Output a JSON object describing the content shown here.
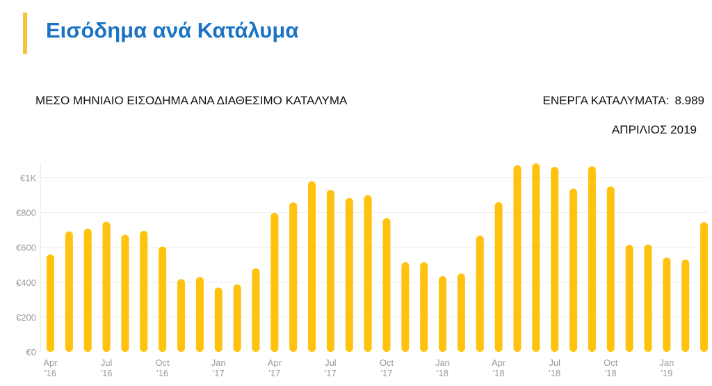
{
  "header": {
    "title": "Εισόδημα ανά Κατάλυμα"
  },
  "kpi": {
    "active_label": "ΕΝΕΡΓΑ ΚΑΤΑΛΥΜΑΤΑ:",
    "active_value": "8.989",
    "period": "ΑΠΡΙΛΙΟΣ 2019"
  },
  "colors": {
    "bar": "#FFC20E",
    "title": "#1A73C3",
    "accent": "#F5C33B",
    "axis_text": "#9A9A9A",
    "grid": "#EFEFEF"
  },
  "chart_data": {
    "type": "bar",
    "title": "ΜΕΣΟ ΜΗΝΙΑΙΟ ΕΙΣΟΔΗΜΑ ΑΝΑ ΔΙΑΘΕΣΙΜΟ ΚΑΤΑΛΥΜΑ",
    "xlabel": "",
    "ylabel": "",
    "categories": [
      "Apr 2016",
      "May 2016",
      "Jun 2016",
      "Jul 2016",
      "Aug 2016",
      "Sep 2016",
      "Oct 2016",
      "Nov 2016",
      "Dec 2016",
      "Jan 2017",
      "Feb 2017",
      "Mar 2017",
      "Apr 2017",
      "May 2017",
      "Jun 2017",
      "Jul 2017",
      "Aug 2017",
      "Sep 2017",
      "Oct 2017",
      "Nov 2017",
      "Dec 2017",
      "Jan 2018",
      "Feb 2018",
      "Mar 2018",
      "Apr 2018",
      "May 2018",
      "Jun 2018",
      "Jul 2018",
      "Aug 2018",
      "Sep 2018",
      "Oct 2018",
      "Nov 2018",
      "Dec 2018",
      "Jan 2019",
      "Feb 2019",
      "Mar 2019"
    ],
    "values": [
      560,
      692,
      708,
      748,
      672,
      695,
      605,
      418,
      430,
      370,
      388,
      480,
      798,
      858,
      980,
      930,
      883,
      900,
      768,
      515,
      515,
      435,
      450,
      668,
      860,
      1072,
      1082,
      1062,
      937,
      1065,
      950,
      615,
      617,
      542,
      530,
      745
    ],
    "ylim": [
      0,
      1100
    ],
    "yticks": [
      {
        "value": 0,
        "label": "€0"
      },
      {
        "value": 200,
        "label": "€200"
      },
      {
        "value": 400,
        "label": "€400"
      },
      {
        "value": 600,
        "label": "€600"
      },
      {
        "value": 800,
        "label": "€800"
      },
      {
        "value": 1000,
        "label": "€1K"
      }
    ],
    "xticks": [
      {
        "index": 0,
        "month": "Apr",
        "year": "'16"
      },
      {
        "index": 3,
        "month": "Jul",
        "year": "'16"
      },
      {
        "index": 6,
        "month": "Oct",
        "year": "'16"
      },
      {
        "index": 9,
        "month": "Jan",
        "year": "'17"
      },
      {
        "index": 12,
        "month": "Apr",
        "year": "'17"
      },
      {
        "index": 15,
        "month": "Jul",
        "year": "'17"
      },
      {
        "index": 18,
        "month": "Oct",
        "year": "'17"
      },
      {
        "index": 21,
        "month": "Jan",
        "year": "'18"
      },
      {
        "index": 24,
        "month": "Apr",
        "year": "'18"
      },
      {
        "index": 27,
        "month": "Jul",
        "year": "'18"
      },
      {
        "index": 30,
        "month": "Oct",
        "year": "'18"
      },
      {
        "index": 33,
        "month": "Jan",
        "year": "'19"
      }
    ],
    "grid": true,
    "legend": "none"
  }
}
